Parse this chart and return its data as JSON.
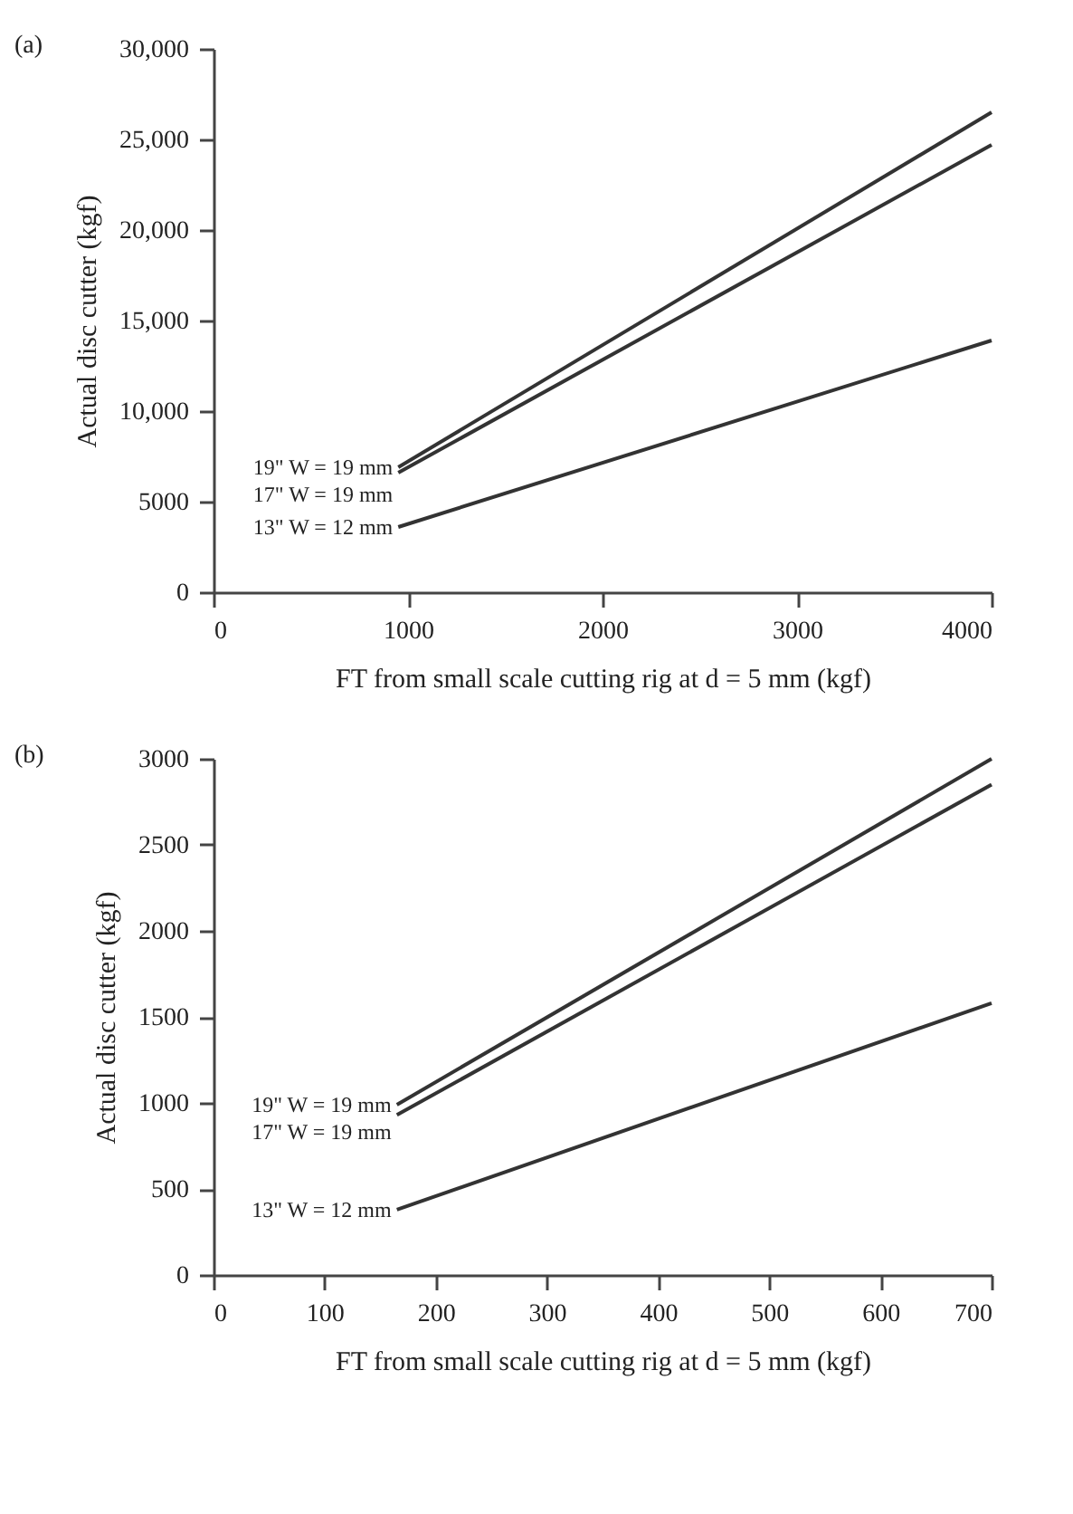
{
  "chart_data": [
    {
      "type": "line",
      "title": "(a)",
      "xlabel": "FT from small scale cutting rig at d = 5 mm (kgf)",
      "ylabel": "Actual disc cutter (kgf)",
      "xlim": [
        0,
        4000
      ],
      "xticks": [
        0,
        1000,
        2000,
        3000,
        4000
      ],
      "ylim": [
        0,
        30000
      ],
      "yticks": [
        0,
        5000,
        {
          "value": 10000,
          "label": "10,000"
        },
        {
          "value": 15000,
          "label": "15,000"
        },
        {
          "value": 20000,
          "label": "20,000"
        },
        {
          "value": 25000,
          "label": "25,000"
        },
        {
          "value": 30000,
          "label": "30,000"
        }
      ],
      "grid": false,
      "marker": "none",
      "series": [
        {
          "name": "19\" W = 19 mm",
          "color": "#333333",
          "x": [
            950,
            4000
          ],
          "values": [
            6900,
            26500
          ]
        },
        {
          "name": "17\" W = 19 mm",
          "color": "#333333",
          "x": [
            950,
            4000
          ],
          "values": [
            6600,
            24700
          ]
        },
        {
          "name": "13\" W = 12 mm",
          "color": "#333333",
          "x": [
            950,
            4000
          ],
          "values": [
            3600,
            13900
          ]
        }
      ]
    },
    {
      "type": "line",
      "title": "(b)",
      "xlabel": "FT from small scale cutting rig at d = 5 mm (kgf)",
      "ylabel": "Actual disc cutter (kgf)",
      "xlim": [
        0,
        700
      ],
      "xticks": [
        0,
        100,
        200,
        300,
        400,
        500,
        600,
        700
      ],
      "ylim": [
        0,
        3000
      ],
      "yticks": [
        0,
        500,
        1000,
        1500,
        2000,
        2500,
        3000
      ],
      "grid": false,
      "marker": "none",
      "series": [
        {
          "name": "19\" W = 19 mm",
          "color": "#333333",
          "x": [
            165,
            700
          ],
          "values": [
            990,
            3000
          ]
        },
        {
          "name": "17\" W = 19 mm",
          "color": "#333333",
          "x": [
            165,
            700
          ],
          "values": [
            930,
            2850
          ]
        },
        {
          "name": "13\" W = 12 mm",
          "color": "#333333",
          "x": [
            165,
            700
          ],
          "values": [
            380,
            1580
          ]
        }
      ]
    }
  ]
}
